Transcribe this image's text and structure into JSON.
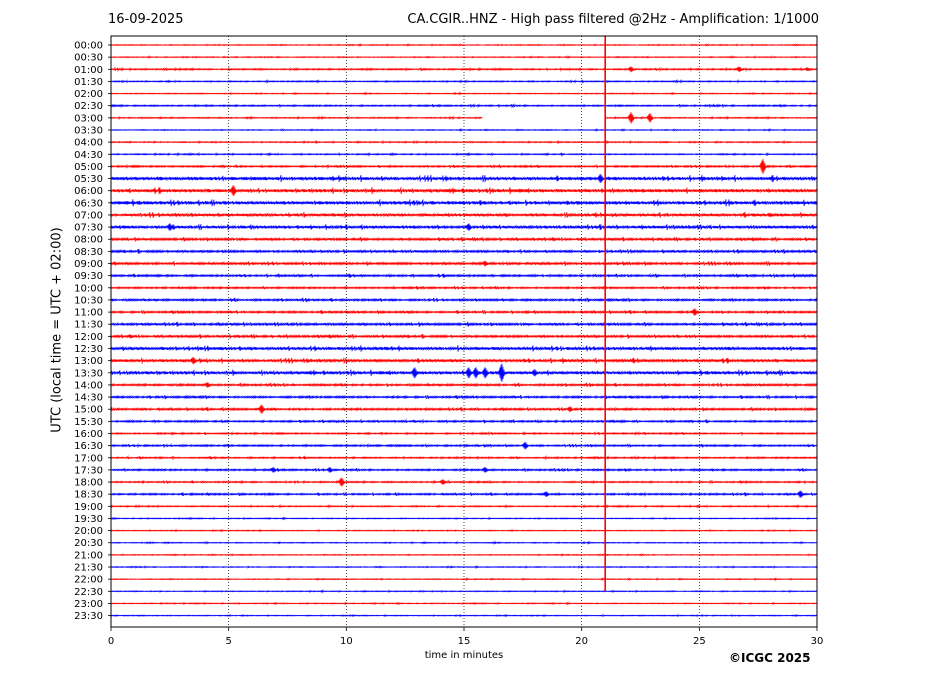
{
  "header": {
    "date": "16-09-2025",
    "title": "CA.CGIR..HNZ - High pass filtered @2Hz - Amplification: 1/1000"
  },
  "footer": {
    "copyright": "©ICGC 2025"
  },
  "colors": {
    "trace_red": "#ff0000",
    "trace_blue": "#0000ff",
    "grid": "#000000",
    "axis": "#000000"
  },
  "chart_data": {
    "type": "line",
    "title": "CA.CGIR..HNZ - High pass filtered @2Hz - Amplification: 1/1000",
    "xlabel": "time in minutes",
    "ylabel": "UTC (local time = UTC + 02:00)",
    "xlim": [
      0,
      30
    ],
    "x_ticks": [
      0,
      5,
      10,
      15,
      20,
      25,
      30
    ],
    "x_grid": [
      5,
      10,
      15,
      20,
      25
    ],
    "row_labels": [
      "00:00",
      "00:30",
      "01:00",
      "01:30",
      "02:00",
      "02:30",
      "03:00",
      "03:30",
      "04:00",
      "04:30",
      "05:00",
      "05:30",
      "06:00",
      "06:30",
      "07:00",
      "07:30",
      "08:00",
      "08:30",
      "09:00",
      "09:30",
      "10:00",
      "10:30",
      "11:00",
      "11:30",
      "12:00",
      "12:30",
      "13:00",
      "13:30",
      "14:00",
      "14:30",
      "15:00",
      "15:30",
      "16:00",
      "16:30",
      "17:00",
      "17:30",
      "18:00",
      "18:30",
      "19:00",
      "19:30",
      "20:00",
      "20:30",
      "21:00",
      "21:30",
      "22:00",
      "22:30",
      "23:00",
      "23:30"
    ],
    "row_colors": [
      "red",
      "red",
      "red",
      "blue",
      "red",
      "blue",
      "red",
      "blue",
      "red",
      "blue",
      "red",
      "blue",
      "red",
      "blue",
      "red",
      "blue",
      "red",
      "blue",
      "red",
      "blue",
      "red",
      "blue",
      "red",
      "blue",
      "red",
      "blue",
      "red",
      "blue",
      "red",
      "blue",
      "red",
      "blue",
      "red",
      "blue",
      "red",
      "blue",
      "red",
      "blue",
      "red",
      "blue",
      "red",
      "blue",
      "red",
      "blue",
      "red",
      "blue",
      "red",
      "blue"
    ],
    "row_noise": [
      0.3,
      0.3,
      0.5,
      0.4,
      0.3,
      0.5,
      0.4,
      0.3,
      0.4,
      0.4,
      0.6,
      1.2,
      1.2,
      1.2,
      1.0,
      1.0,
      0.8,
      0.8,
      0.8,
      0.7,
      0.6,
      0.7,
      0.7,
      0.8,
      0.8,
      1.1,
      1.0,
      1.1,
      0.7,
      0.7,
      0.7,
      0.6,
      0.5,
      0.6,
      0.5,
      0.6,
      0.5,
      0.6,
      0.4,
      0.3,
      0.3,
      0.3,
      0.3,
      0.3,
      0.3,
      0.3,
      0.3,
      0.3
    ],
    "events": [
      {
        "row": 2,
        "t": 22.1,
        "amp": 3
      },
      {
        "row": 2,
        "t": 26.7,
        "amp": 3
      },
      {
        "row": 2,
        "t": 29.6,
        "amp": 2
      },
      {
        "row": 6,
        "t": 22.1,
        "amp": 6
      },
      {
        "row": 6,
        "t": 22.9,
        "amp": 5
      },
      {
        "row": 10,
        "t": 27.7,
        "amp": 8
      },
      {
        "row": 11,
        "t": 20.8,
        "amp": 5
      },
      {
        "row": 12,
        "t": 5.2,
        "amp": 6
      },
      {
        "row": 15,
        "t": 2.5,
        "amp": 4
      },
      {
        "row": 15,
        "t": 15.2,
        "amp": 4
      },
      {
        "row": 18,
        "t": 15.9,
        "amp": 3
      },
      {
        "row": 22,
        "t": 24.8,
        "amp": 4
      },
      {
        "row": 26,
        "t": 3.5,
        "amp": 4
      },
      {
        "row": 27,
        "t": 12.9,
        "amp": 6
      },
      {
        "row": 27,
        "t": 15.2,
        "amp": 6
      },
      {
        "row": 27,
        "t": 15.5,
        "amp": 6
      },
      {
        "row": 27,
        "t": 15.9,
        "amp": 6
      },
      {
        "row": 27,
        "t": 16.6,
        "amp": 10
      },
      {
        "row": 27,
        "t": 18.0,
        "amp": 4
      },
      {
        "row": 28,
        "t": 4.1,
        "amp": 3
      },
      {
        "row": 30,
        "t": 6.4,
        "amp": 5
      },
      {
        "row": 30,
        "t": 19.5,
        "amp": 3
      },
      {
        "row": 33,
        "t": 17.6,
        "amp": 4
      },
      {
        "row": 35,
        "t": 6.9,
        "amp": 3
      },
      {
        "row": 35,
        "t": 9.3,
        "amp": 3
      },
      {
        "row": 35,
        "t": 15.9,
        "amp": 3
      },
      {
        "row": 36,
        "t": 9.8,
        "amp": 5
      },
      {
        "row": 36,
        "t": 14.1,
        "amp": 3
      },
      {
        "row": 37,
        "t": 18.5,
        "amp": 3
      },
      {
        "row": 37,
        "t": 29.3,
        "amp": 4
      }
    ],
    "spike": {
      "t": 21.0,
      "row_start": 0,
      "row_end": 45
    },
    "gap": {
      "row": 6,
      "t_start": 15.8,
      "t_end": 21.0
    }
  }
}
